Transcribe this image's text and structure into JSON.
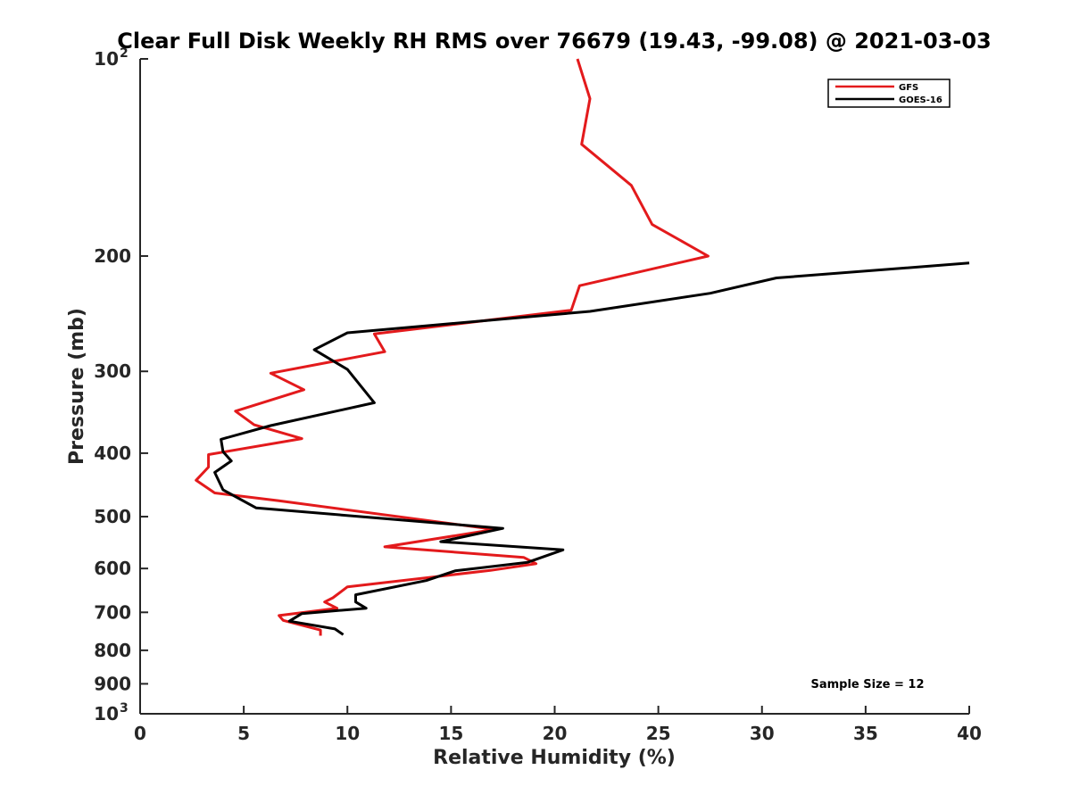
{
  "chart_data": {
    "type": "line",
    "title": "Clear Full Disk Weekly RH RMS over 76679 (19.43, -99.08) @ 2021-03-03",
    "xlabel": "Relative Humidity (%)",
    "ylabel": "Pressure (mb)",
    "xlim": [
      0,
      40
    ],
    "ylim": [
      1000,
      100
    ],
    "y_scale": "log",
    "y_reversed": true,
    "grid": false,
    "legend_position": "top-right",
    "x_ticks": [
      {
        "value": 0,
        "label": "0"
      },
      {
        "value": 5,
        "label": "5"
      },
      {
        "value": 10,
        "label": "10"
      },
      {
        "value": 15,
        "label": "15"
      },
      {
        "value": 20,
        "label": "20"
      },
      {
        "value": 25,
        "label": "25"
      },
      {
        "value": 30,
        "label": "30"
      },
      {
        "value": 35,
        "label": "35"
      },
      {
        "value": 40,
        "label": "40"
      }
    ],
    "y_ticks": [
      {
        "value": 100,
        "label": "10",
        "sup": "2"
      },
      {
        "value": 200,
        "label": "200"
      },
      {
        "value": 300,
        "label": "300"
      },
      {
        "value": 400,
        "label": "400"
      },
      {
        "value": 500,
        "label": "500"
      },
      {
        "value": 600,
        "label": "600"
      },
      {
        "value": 700,
        "label": "700"
      },
      {
        "value": 800,
        "label": "800"
      },
      {
        "value": 900,
        "label": "900"
      },
      {
        "value": 1000,
        "label": "10",
        "sup": "3"
      }
    ],
    "series": [
      {
        "name": "GFS",
        "color": "#e31a1c",
        "x": [
          21.1,
          21.7,
          21.3,
          23.7,
          24.7,
          27.4,
          21.2,
          20.8,
          11.3,
          11.8,
          6.3,
          7.9,
          4.6,
          5.5,
          7.8,
          3.3,
          3.3,
          2.7,
          3.6,
          6.7,
          17.1,
          11.8,
          18.5,
          19.1,
          16.9,
          10.0,
          9.3,
          8.9,
          9.5,
          6.7,
          6.9,
          8.7,
          8.7
        ],
        "y": [
          100,
          115,
          135,
          156,
          179,
          200,
          222,
          242,
          263,
          280,
          302,
          320,
          345,
          362,
          380,
          402,
          420,
          440,
          460,
          473,
          523,
          556,
          577,
          590,
          604,
          640,
          665,
          675,
          690,
          708,
          720,
          745,
          760
        ]
      },
      {
        "name": "GOES-16",
        "color": "#000000",
        "x": [
          40.0,
          30.7,
          27.5,
          21.7,
          10.0,
          8.4,
          10.0,
          11.3,
          6.3,
          3.9,
          4.0,
          4.4,
          3.6,
          4.0,
          5.6,
          17.5,
          14.5,
          20.4,
          18.7,
          15.2,
          13.8,
          10.4,
          10.4,
          10.9,
          7.8,
          7.2,
          9.4,
          9.8
        ],
        "y": [
          205,
          216,
          228,
          243,
          262,
          278,
          298,
          335,
          363,
          381,
          398,
          411,
          428,
          455,
          485,
          521,
          546,
          562,
          587,
          605,
          626,
          658,
          675,
          690,
          703,
          722,
          742,
          757
        ]
      }
    ],
    "annotation": "Sample Size = 12"
  }
}
